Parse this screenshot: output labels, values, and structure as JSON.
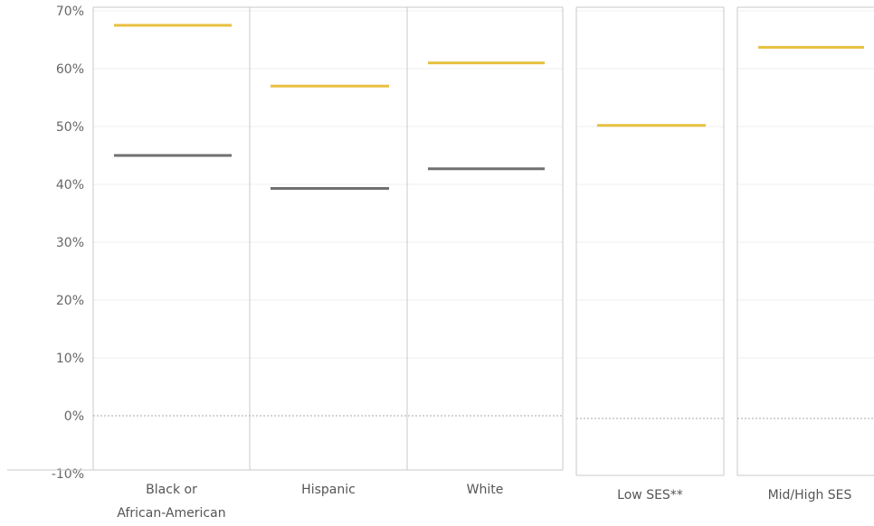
{
  "chart_data": {
    "type": "bar",
    "y_ticks": [
      "70%",
      "60%",
      "50%",
      "40%",
      "30%",
      "20%",
      "10%",
      "0%",
      "-10%"
    ],
    "ylim": [
      -10,
      70
    ],
    "panels": [
      {
        "categories": [
          [
            "Black or",
            "African-American"
          ],
          [
            "Hispanic"
          ],
          [
            "White"
          ]
        ],
        "series": [
          {
            "color": "#e8c040",
            "values": [
              67.5,
              57.0,
              61.0
            ]
          },
          {
            "color": "#707070",
            "values": [
              45.0,
              39.3,
              42.7
            ]
          }
        ]
      },
      {
        "categories": [
          [
            "Low SES**"
          ]
        ],
        "series": [
          {
            "color": "#e8c040",
            "values": [
              50.2
            ]
          }
        ]
      },
      {
        "categories": [
          [
            "Mid/High SES"
          ]
        ],
        "series": [
          {
            "color": "#e8c040",
            "values": [
              63.7
            ]
          }
        ]
      }
    ],
    "grid": true,
    "colors": {
      "gridline": "#efefef",
      "border": "#c8c8c8",
      "zero_line": "#aaaaaa"
    }
  }
}
